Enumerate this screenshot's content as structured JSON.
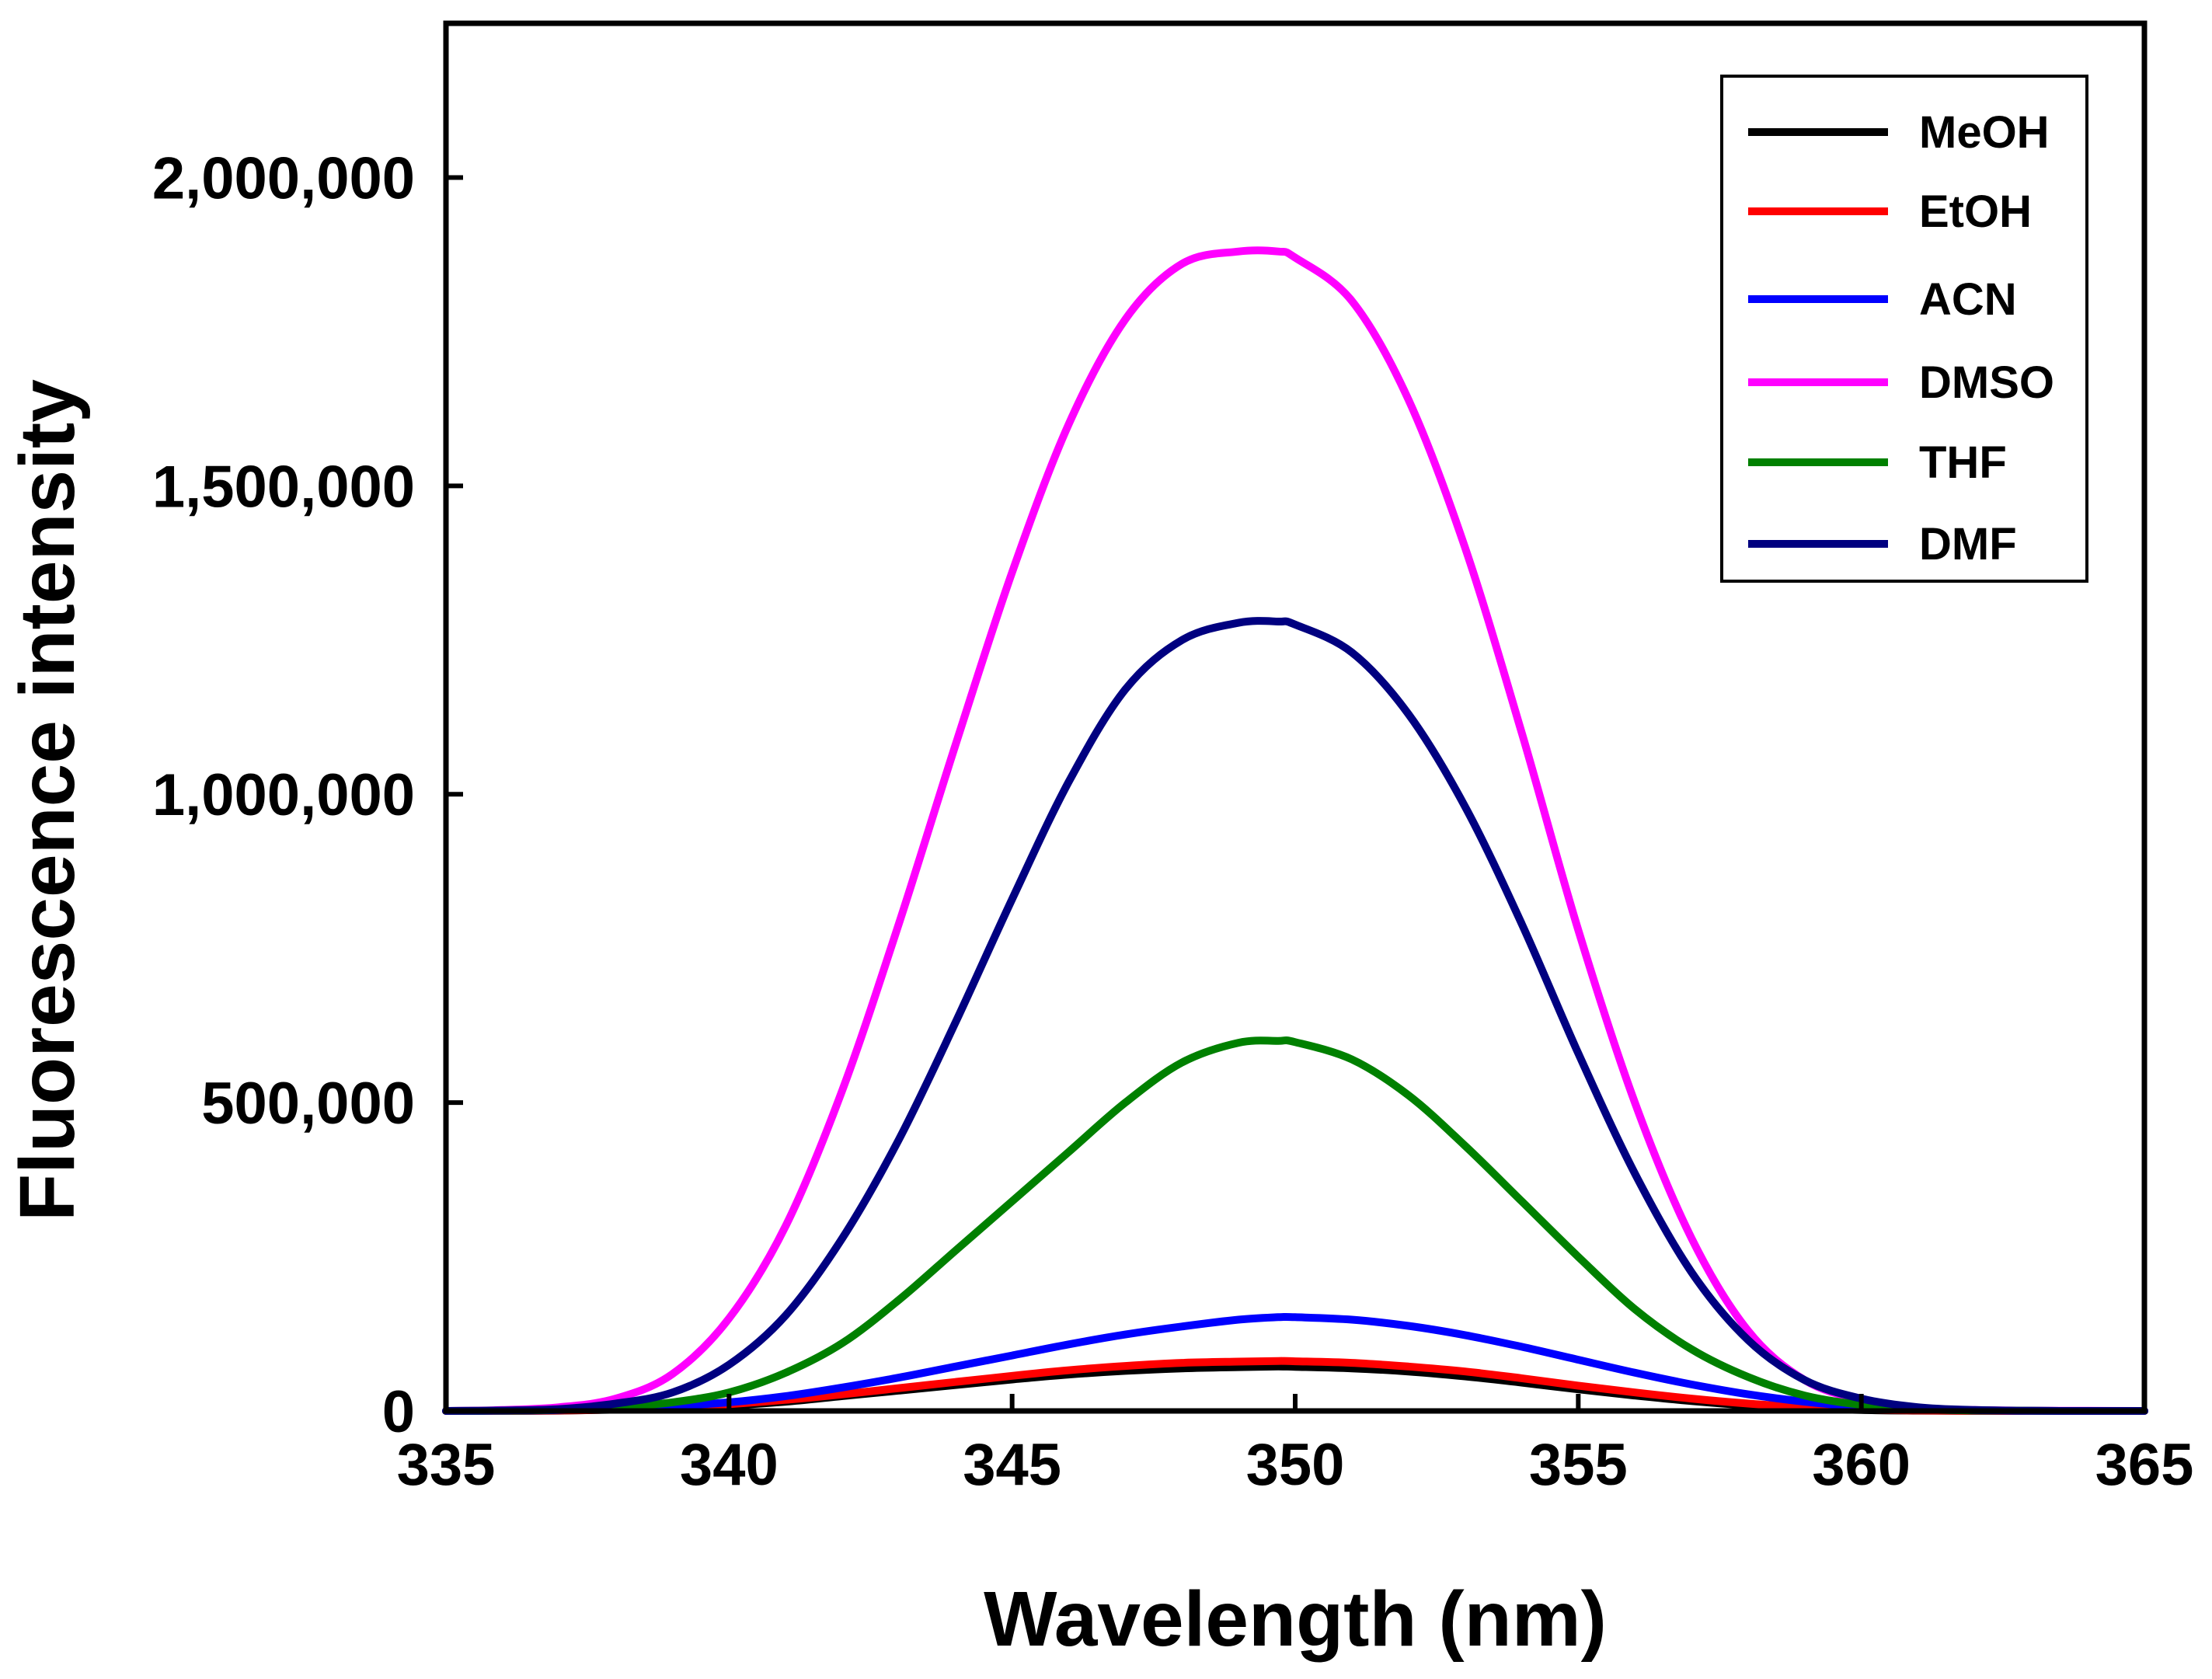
{
  "chart_data": {
    "type": "line",
    "title": "",
    "xlabel": "Wavelength (nm)",
    "ylabel": "Fluorescence intensity",
    "xlim": [
      335,
      365
    ],
    "ylim": [
      0,
      2250000
    ],
    "x_ticks": [
      335,
      340,
      345,
      350,
      355,
      360,
      365
    ],
    "x_tick_labels": [
      "335",
      "340",
      "345",
      "350",
      "355",
      "360",
      "365"
    ],
    "y_ticks": [
      0,
      500000,
      1000000,
      1500000,
      2000000
    ],
    "y_tick_labels": [
      "0",
      "500,000",
      "1,000,000",
      "1,500,000",
      "2,000,000"
    ],
    "grid": false,
    "legend_position": "top-right",
    "x": [
      335,
      336,
      337,
      338,
      339,
      340,
      341,
      342,
      343,
      344,
      345,
      346,
      347,
      348,
      349,
      349.7,
      350,
      351,
      352,
      353,
      354,
      355,
      356,
      357,
      358,
      359,
      360,
      361,
      362,
      363,
      364,
      365
    ],
    "series": [
      {
        "name": "MeOH",
        "color": "#000000",
        "values": [
          0,
          100,
          500,
          2000,
          5000,
          9000,
          15000,
          24000,
          33000,
          42000,
          51000,
          59000,
          65000,
          69000,
          71000,
          72000,
          71500,
          69000,
          64000,
          56000,
          46000,
          35000,
          25000,
          16000,
          9000,
          4000,
          1500,
          500,
          100,
          0,
          0,
          0
        ]
      },
      {
        "name": "EtOH",
        "color": "#ff0000",
        "values": [
          0,
          200,
          800,
          2500,
          6000,
          11000,
          18000,
          27000,
          37000,
          47000,
          57000,
          66000,
          73000,
          78000,
          80000,
          81000,
          80500,
          78000,
          72000,
          64000,
          53000,
          41000,
          30000,
          20000,
          12000,
          6000,
          2500,
          800,
          200,
          0,
          0,
          0
        ]
      },
      {
        "name": "ACN",
        "color": "#0000ff",
        "values": [
          0,
          500,
          1500,
          4000,
          8000,
          14000,
          24000,
          38000,
          54000,
          72000,
          90000,
          108000,
          124000,
          137000,
          148000,
          152000,
          152000,
          148000,
          138000,
          123000,
          104000,
          83000,
          62000,
          43000,
          27000,
          15000,
          7000,
          3000,
          1000,
          300,
          0,
          0
        ]
      },
      {
        "name": "DMSO",
        "color": "#ff00ff",
        "values": [
          0,
          1500,
          6000,
          20000,
          60000,
          150000,
          300000,
          520000,
          790000,
          1080000,
          1360000,
          1600000,
          1770000,
          1860000,
          1880000,
          1880000,
          1870000,
          1800000,
          1640000,
          1400000,
          1100000,
          780000,
          500000,
          280000,
          130000,
          50000,
          18000,
          5000,
          1500,
          500,
          200,
          0
        ]
      },
      {
        "name": "THF",
        "color": "#008000",
        "values": [
          0,
          500,
          2000,
          6000,
          14000,
          30000,
          62000,
          110000,
          180000,
          260000,
          340000,
          420000,
          500000,
          565000,
          597000,
          600000,
          598000,
          570000,
          512000,
          430000,
          340000,
          250000,
          165000,
          100000,
          55000,
          25000,
          10000,
          3000,
          1000,
          200,
          0,
          0
        ]
      },
      {
        "name": "DMF",
        "color": "#000080",
        "values": [
          0,
          800,
          3000,
          12000,
          30000,
          75000,
          155000,
          280000,
          440000,
          630000,
          830000,
          1020000,
          1170000,
          1250000,
          1278000,
          1280000,
          1275000,
          1230000,
          1130000,
          980000,
          790000,
          580000,
          385000,
          225000,
          115000,
          50000,
          20000,
          6000,
          1500,
          300,
          0,
          0
        ]
      }
    ]
  }
}
